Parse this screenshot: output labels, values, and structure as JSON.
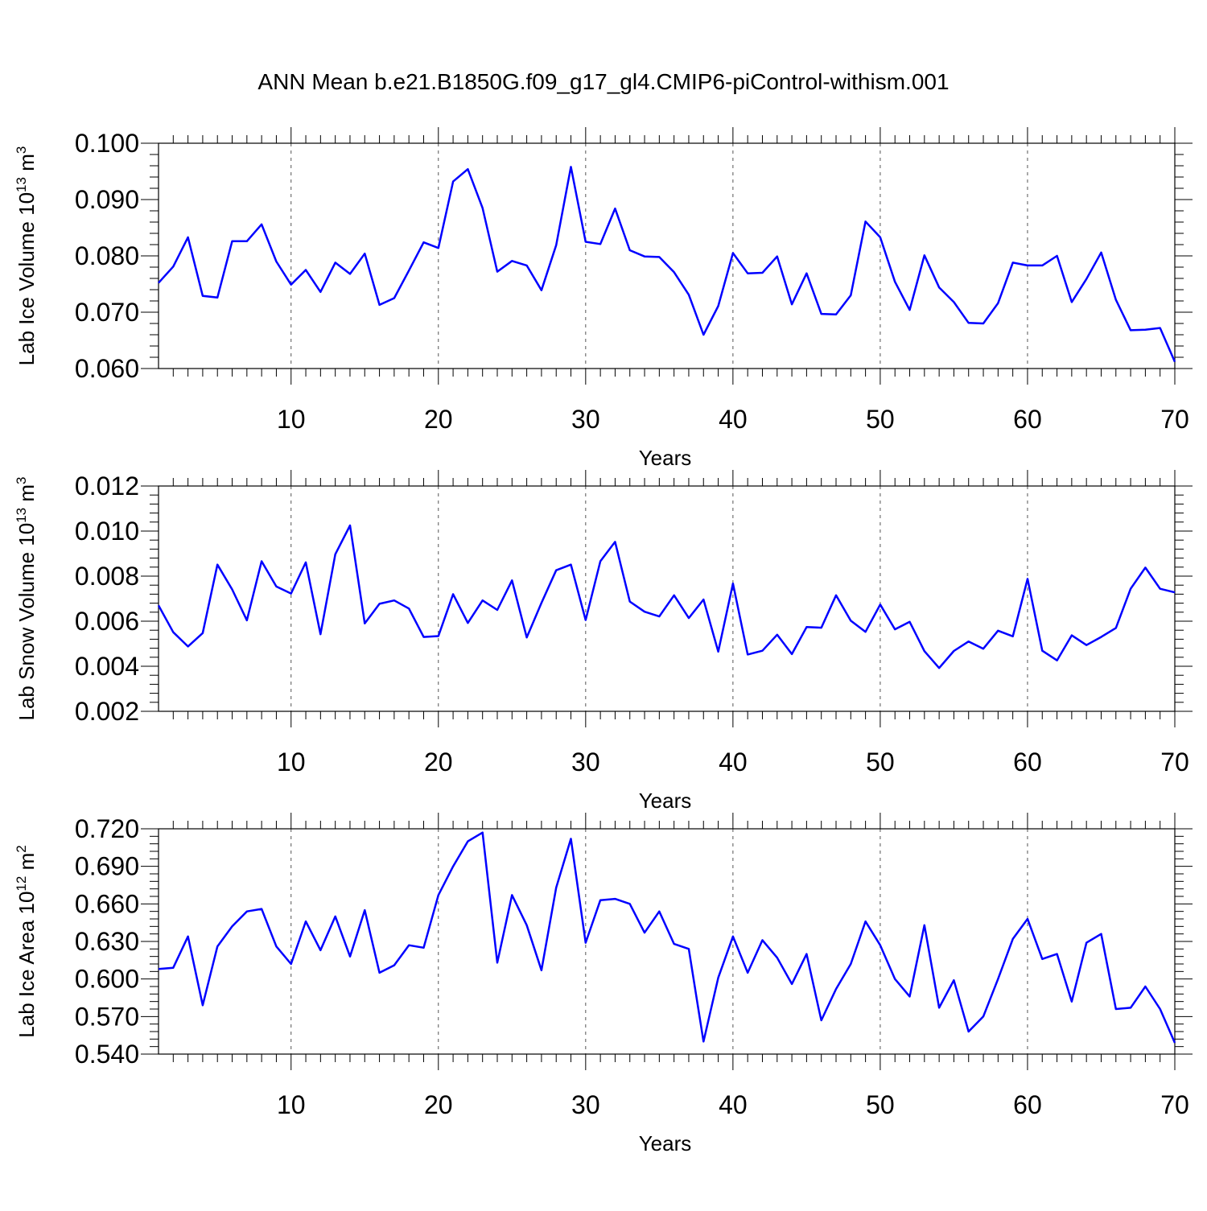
{
  "title": "ANN Mean b.e21.B1850G.f09_g17_gl4.CMIP6-piControl-withism.001",
  "colors": {
    "line": "#0000ff",
    "axis": "#000000",
    "grid": "#555555"
  },
  "chart_data": [
    {
      "type": "line",
      "xlabel": "Years",
      "ylabel": {
        "text": "Lab Ice Volume 10",
        "exp": "13",
        "unit": " m",
        "unit_exp": "3"
      },
      "xlim": [
        1,
        70
      ],
      "ylim": [
        0.06,
        0.1
      ],
      "xticks": [
        10,
        20,
        30,
        40,
        50,
        60,
        70
      ],
      "yticks": [
        "0.060",
        "0.070",
        "0.080",
        "0.090",
        "0.100"
      ],
      "grid": "vertical dashed at major x ticks",
      "series": [
        {
          "x": [
            1,
            2,
            3,
            4,
            5,
            6,
            7,
            8,
            9,
            10,
            11,
            12,
            13,
            14,
            15,
            16,
            17,
            18,
            19,
            20,
            21,
            22,
            23,
            24,
            25,
            26,
            27,
            28,
            29,
            30,
            31,
            32,
            33,
            34,
            35,
            36,
            37,
            38,
            39,
            40,
            41,
            42,
            43,
            44,
            45,
            46,
            47,
            48,
            49,
            50,
            51,
            52,
            53,
            54,
            55,
            56,
            57,
            58,
            59,
            60,
            61,
            62,
            63,
            64,
            65,
            66,
            67,
            68,
            69,
            70
          ],
          "y": [
            0.0752,
            0.0781,
            0.0833,
            0.0729,
            0.0726,
            0.0826,
            0.0826,
            0.0856,
            0.079,
            0.0749,
            0.0775,
            0.0736,
            0.0788,
            0.0768,
            0.0804,
            0.0713,
            0.0725,
            0.0774,
            0.0824,
            0.0814,
            0.0932,
            0.0954,
            0.0885,
            0.0772,
            0.0791,
            0.0783,
            0.0739,
            0.0819,
            0.0958,
            0.0825,
            0.0821,
            0.0884,
            0.081,
            0.0799,
            0.0798,
            0.0771,
            0.0731,
            0.066,
            0.0711,
            0.0805,
            0.0769,
            0.077,
            0.0799,
            0.0714,
            0.0769,
            0.0697,
            0.0696,
            0.073,
            0.0861,
            0.0833,
            0.0754,
            0.0704,
            0.0801,
            0.0744,
            0.0718,
            0.0681,
            0.068,
            0.0716,
            0.0788,
            0.0783,
            0.0783,
            0.08,
            0.0718,
            0.0759,
            0.0806,
            0.0722,
            0.0668,
            0.0669,
            0.0672,
            0.0612
          ]
        }
      ]
    },
    {
      "type": "line",
      "xlabel": "Years",
      "ylabel": {
        "text": "Lab Snow Volume 10",
        "exp": "13",
        "unit": " m",
        "unit_exp": "3"
      },
      "xlim": [
        1,
        70
      ],
      "ylim": [
        0.002,
        0.012
      ],
      "xticks": [
        10,
        20,
        30,
        40,
        50,
        60,
        70
      ],
      "yticks": [
        "0.002",
        "0.004",
        "0.006",
        "0.008",
        "0.010",
        "0.012"
      ],
      "grid": "vertical dashed at major x ticks",
      "series": [
        {
          "x": [
            1,
            2,
            3,
            4,
            5,
            6,
            7,
            8,
            9,
            10,
            11,
            12,
            13,
            14,
            15,
            16,
            17,
            18,
            19,
            20,
            21,
            22,
            23,
            24,
            25,
            26,
            27,
            28,
            29,
            30,
            31,
            32,
            33,
            34,
            35,
            36,
            37,
            38,
            39,
            40,
            41,
            42,
            43,
            44,
            45,
            46,
            47,
            48,
            49,
            50,
            51,
            52,
            53,
            54,
            55,
            56,
            57,
            58,
            59,
            60,
            61,
            62,
            63,
            64,
            65,
            66,
            67,
            68,
            69,
            70
          ],
          "y": [
            0.0067,
            0.00551,
            0.00488,
            0.00547,
            0.00851,
            0.00741,
            0.00604,
            0.00866,
            0.00754,
            0.00723,
            0.00861,
            0.00542,
            0.00897,
            0.01025,
            0.0059,
            0.00677,
            0.00692,
            0.00656,
            0.0053,
            0.00534,
            0.0072,
            0.00592,
            0.00692,
            0.0065,
            0.00781,
            0.00528,
            0.00681,
            0.00826,
            0.00851,
            0.00605,
            0.00866,
            0.00952,
            0.00687,
            0.00642,
            0.00621,
            0.00715,
            0.00614,
            0.00696,
            0.00465,
            0.00767,
            0.00452,
            0.00469,
            0.0054,
            0.00454,
            0.00574,
            0.00571,
            0.00715,
            0.00602,
            0.00553,
            0.00674,
            0.00564,
            0.00597,
            0.00467,
            0.00392,
            0.00468,
            0.0051,
            0.00478,
            0.00558,
            0.00533,
            0.00788,
            0.00469,
            0.00426,
            0.00537,
            0.00494,
            0.0053,
            0.0057,
            0.00744,
            0.00838,
            0.00744,
            0.00728
          ]
        }
      ]
    },
    {
      "type": "line",
      "xlabel": "Years",
      "ylabel": {
        "text": "Lab Ice Area 10",
        "exp": "12",
        "unit": " m",
        "unit_exp": "2"
      },
      "xlim": [
        1,
        70
      ],
      "ylim": [
        0.54,
        0.72
      ],
      "xticks": [
        10,
        20,
        30,
        40,
        50,
        60,
        70
      ],
      "yticks": [
        "0.540",
        "0.570",
        "0.600",
        "0.630",
        "0.660",
        "0.690",
        "0.720"
      ],
      "grid": "vertical dashed at major x ticks",
      "series": [
        {
          "x": [
            1,
            2,
            3,
            4,
            5,
            6,
            7,
            8,
            9,
            10,
            11,
            12,
            13,
            14,
            15,
            16,
            17,
            18,
            19,
            20,
            21,
            22,
            23,
            24,
            25,
            26,
            27,
            28,
            29,
            30,
            31,
            32,
            33,
            34,
            35,
            36,
            37,
            38,
            39,
            40,
            41,
            42,
            43,
            44,
            45,
            46,
            47,
            48,
            49,
            50,
            51,
            52,
            53,
            54,
            55,
            56,
            57,
            58,
            59,
            60,
            61,
            62,
            63,
            64,
            65,
            66,
            67,
            68,
            69,
            70
          ],
          "y": [
            0.608,
            0.609,
            0.634,
            0.579,
            0.626,
            0.642,
            0.654,
            0.656,
            0.626,
            0.612,
            0.646,
            0.623,
            0.65,
            0.618,
            0.655,
            0.605,
            0.611,
            0.627,
            0.625,
            0.667,
            0.69,
            0.71,
            0.717,
            0.613,
            0.667,
            0.643,
            0.607,
            0.673,
            0.712,
            0.629,
            0.663,
            0.664,
            0.66,
            0.637,
            0.654,
            0.628,
            0.624,
            0.55,
            0.601,
            0.634,
            0.605,
            0.631,
            0.617,
            0.596,
            0.62,
            0.567,
            0.592,
            0.612,
            0.646,
            0.627,
            0.6,
            0.586,
            0.643,
            0.577,
            0.599,
            0.558,
            0.57,
            0.6,
            0.632,
            0.648,
            0.616,
            0.62,
            0.582,
            0.629,
            0.636,
            0.576,
            0.577,
            0.594,
            0.576,
            0.549
          ]
        }
      ]
    }
  ]
}
